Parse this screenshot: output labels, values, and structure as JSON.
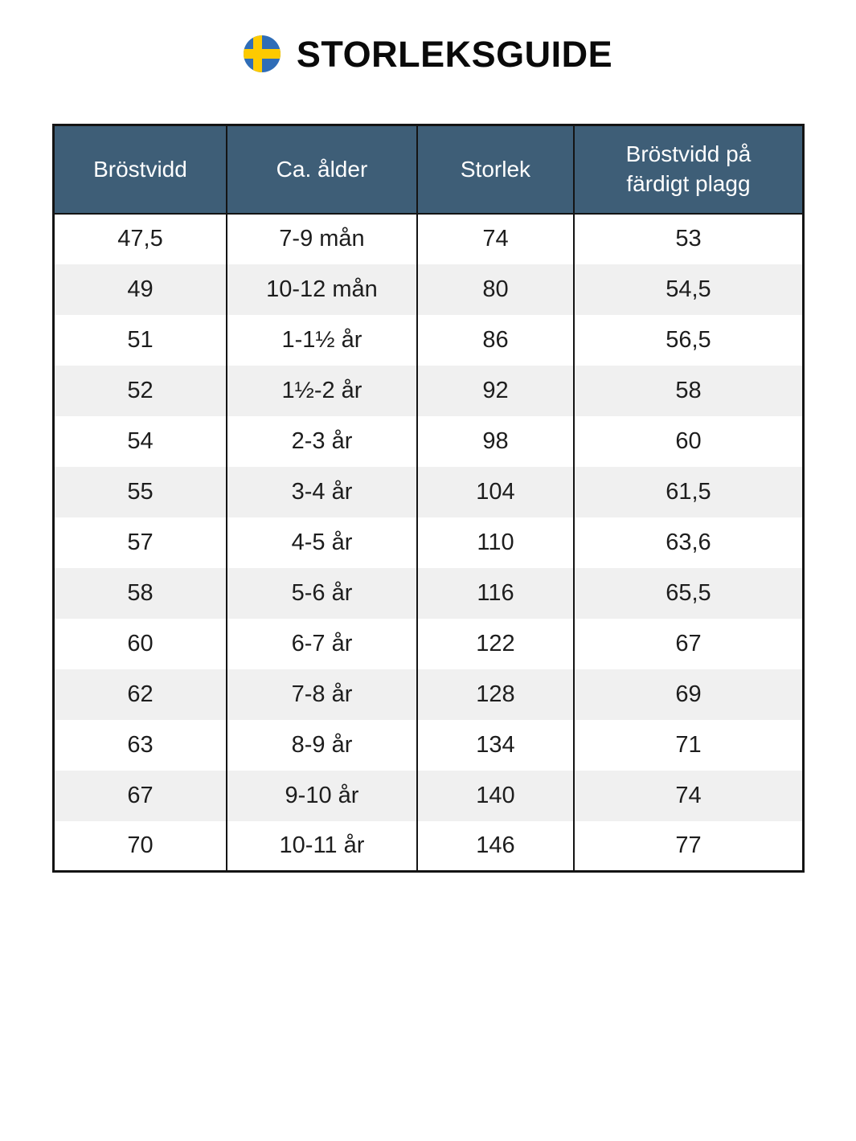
{
  "page": {
    "title": "STORLEKSGUIDE"
  },
  "icons": {
    "flag": "sweden-flag-icon"
  },
  "colors": {
    "header_bg": "#3e5e77",
    "header_text": "#ffffff",
    "row_stripe": "#f0f0f0",
    "border": "#141414",
    "body_text": "#1d1d1d",
    "title_text": "#0a0a0a",
    "flag_blue": "#2f6db7",
    "flag_yellow": "#fdca00"
  },
  "chart_data": {
    "type": "table",
    "title": "STORLEKSGUIDE",
    "columns": [
      "Bröstvidd",
      "Ca. ålder",
      "Storlek",
      "Bröstvidd på färdigt plagg"
    ],
    "rows": [
      [
        "47,5",
        "7-9 mån",
        "74",
        "53"
      ],
      [
        "49",
        "10-12 mån",
        "80",
        "54,5"
      ],
      [
        "51",
        "1-1½ år",
        "86",
        "56,5"
      ],
      [
        "52",
        "1½-2 år",
        "92",
        "58"
      ],
      [
        "54",
        "2-3 år",
        "98",
        "60"
      ],
      [
        "55",
        "3-4 år",
        "104",
        "61,5"
      ],
      [
        "57",
        "4-5 år",
        "110",
        "63,6"
      ],
      [
        "58",
        "5-6 år",
        "116",
        "65,5"
      ],
      [
        "60",
        "6-7 år",
        "122",
        "67"
      ],
      [
        "62",
        "7-8 år",
        "128",
        "69"
      ],
      [
        "63",
        "8-9 år",
        "134",
        "71"
      ],
      [
        "67",
        "9-10 år",
        "140",
        "74"
      ],
      [
        "70",
        "10-11 år",
        "146",
        "77"
      ]
    ],
    "layout_hints": {
      "zebra_striping": true,
      "header_position": "top",
      "column_separators": "solid black",
      "row_separators": "none"
    }
  }
}
